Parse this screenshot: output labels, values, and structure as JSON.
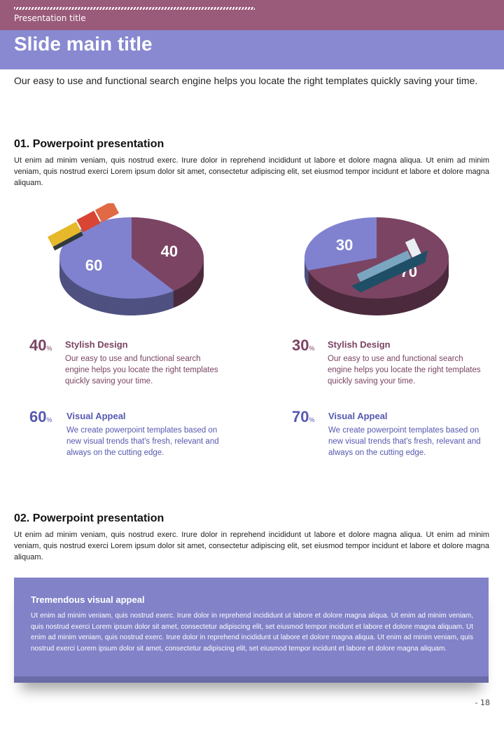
{
  "header": {
    "presentation_title": "Presentation title",
    "slide_title": "Slide main title"
  },
  "intro": "Our easy to use and functional search engine helps you locate the right templates quickly saving your time.",
  "section1": {
    "heading": "01. Powerpoint presentation",
    "body": "Ut enim ad minim veniam, quis nostrud exerc. Irure dolor in reprehend incididunt ut labore et dolore magna aliqua. Ut enim ad minim veniam, quis nostrud exerci  Lorem ipsum dolor sit amet, consectetur adipiscing elit, set eiusmod tempor incidunt et labore et dolore magna aliquam."
  },
  "colors": {
    "purple": "#7b4463",
    "lavender": "#8082cf"
  },
  "chart_data": [
    {
      "type": "pie",
      "icon": "freight-train-icon",
      "slices": [
        {
          "label": "40",
          "value": 40,
          "color": "#7b4463"
        },
        {
          "label": "60",
          "value": 60,
          "color": "#8082cf"
        }
      ]
    },
    {
      "type": "pie",
      "icon": "cargo-ship-icon",
      "slices": [
        {
          "label": "70",
          "value": 70,
          "color": "#7b4463"
        },
        {
          "label": "30",
          "value": 30,
          "color": "#8082cf"
        }
      ]
    }
  ],
  "stats": [
    {
      "num": "40",
      "unit": "%",
      "label": "Stylish Design",
      "desc": "Our easy to use and functional search engine helps you locate the right templates quickly saving your time."
    },
    {
      "num": "60",
      "unit": "%",
      "label": "Visual Appeal",
      "desc": "We create powerpoint templates based on new visual trends that's fresh, relevant and always on the cutting edge."
    },
    {
      "num": "30",
      "unit": "%",
      "label": "Stylish Design",
      "desc": "Our easy to use and functional search engine helps you locate the right templates quickly saving your time."
    },
    {
      "num": "70",
      "unit": "%",
      "label": "Visual Appeal",
      "desc": "We create powerpoint templates based on new visual trends that's fresh, relevant and always on the cutting edge."
    }
  ],
  "section2": {
    "heading": "02. Powerpoint presentation",
    "body": "Ut enim ad minim veniam, quis nostrud exerc. Irure dolor in reprehend incididunt ut labore et dolore magna aliqua. Ut enim ad minim veniam, quis nostrud exerci  Lorem ipsum dolor sit amet, consectetur adipiscing elit, set eiusmod tempor incidunt et labore et dolore magna aliquam."
  },
  "callout": {
    "title": "Tremendous visual appeal",
    "body": "Ut enim ad minim veniam, quis nostrud exerc. Irure dolor in reprehend incididunt ut labore et dolore magna aliqua. Ut enim ad minim veniam, quis nostrud exerci  Lorem ipsum dolor sit amet, consectetur adipiscing elit, set eiusmod tempor incidunt et labore et dolore magna aliquam. Ut enim ad minim veniam, quis nostrud exerc. Irure dolor in reprehend incididunt ut labore et dolore magna aliqua. Ut enim ad minim veniam, quis nostrud exerci  Lorem ipsum dolor sit amet, consectetur adipiscing elit, set eiusmod tempor incidunt et labore et dolore magna aliquam."
  },
  "page_number": "- 18"
}
